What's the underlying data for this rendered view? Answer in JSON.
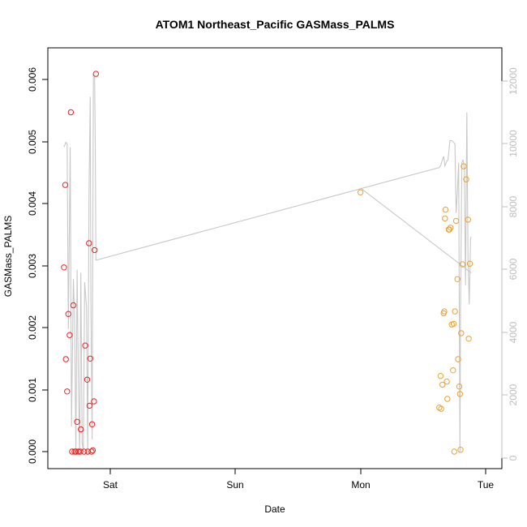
{
  "chart_data": {
    "type": "scatter",
    "title": "ATOM1 Northeast_Pacific GASMass_PALMS",
    "xlabel": "Date",
    "ylabel": "GASMass_PALMS",
    "x_tick_labels": [
      "Sat",
      "Sun",
      "Mon",
      "Tue"
    ],
    "y_ticks": [
      "0.000",
      "0.001",
      "0.002",
      "0.003",
      "0.004",
      "0.005",
      "0.006"
    ],
    "y_right_ticks": [
      "0",
      "2000",
      "4000",
      "6000",
      "8000",
      "10000",
      "12000"
    ],
    "xlim_days": [
      -0.42,
      3.05
    ],
    "ylim": [
      -0.00025,
      0.0063
    ],
    "y_right_lim": [
      -200,
      12800
    ],
    "grid": false,
    "legend": "none",
    "colors": {
      "series_1": "#ee2222",
      "series_2": "#eda030",
      "right_axis_line": "#c8c8c8",
      "right_axis_text": "#bdbdbd"
    },
    "series": [
      {
        "color_key": "series_1",
        "points": [
          {
            "x": -0.37,
            "y": 0.00297
          },
          {
            "x": -0.36,
            "y": 0.0043
          },
          {
            "x": -0.355,
            "y": 0.00149
          },
          {
            "x": -0.345,
            "y": 0.00097
          },
          {
            "x": -0.335,
            "y": 0.00222
          },
          {
            "x": -0.325,
            "y": 0.00188
          },
          {
            "x": -0.315,
            "y": 0.00547
          },
          {
            "x": -0.305,
            "y": 0.0
          },
          {
            "x": -0.295,
            "y": 0.00236
          },
          {
            "x": -0.285,
            "y": 0.0
          },
          {
            "x": -0.275,
            "y": 0.0
          },
          {
            "x": -0.265,
            "y": 0.00048
          },
          {
            "x": -0.255,
            "y": 0.0
          },
          {
            "x": -0.24,
            "y": 0.0
          },
          {
            "x": -0.235,
            "y": 0.00036
          },
          {
            "x": -0.21,
            "y": 0.0
          },
          {
            "x": -0.2,
            "y": 0.00171
          },
          {
            "x": -0.185,
            "y": 0.00116
          },
          {
            "x": -0.18,
            "y": 0.0
          },
          {
            "x": -0.17,
            "y": 0.00336
          },
          {
            "x": -0.165,
            "y": 0.00074
          },
          {
            "x": -0.16,
            "y": 0.0015
          },
          {
            "x": -0.15,
            "y": 0.0
          },
          {
            "x": -0.145,
            "y": 0.00044
          },
          {
            "x": -0.14,
            "y": 2e-05
          },
          {
            "x": -0.13,
            "y": 0.00081
          },
          {
            "x": -0.125,
            "y": 0.00325
          },
          {
            "x": -0.115,
            "y": 0.00609
          }
        ]
      },
      {
        "color_key": "series_2",
        "points": [
          {
            "x": 2.0,
            "y": 0.00418
          },
          {
            "x": 2.63,
            "y": 0.00071
          },
          {
            "x": 2.64,
            "y": 0.00122
          },
          {
            "x": 2.645,
            "y": 0.00069
          },
          {
            "x": 2.655,
            "y": 0.00108
          },
          {
            "x": 2.665,
            "y": 0.00223
          },
          {
            "x": 2.67,
            "y": 0.00226
          },
          {
            "x": 2.675,
            "y": 0.00376
          },
          {
            "x": 2.68,
            "y": 0.0039
          },
          {
            "x": 2.69,
            "y": 0.00113
          },
          {
            "x": 2.695,
            "y": 0.00085
          },
          {
            "x": 2.705,
            "y": 0.00358
          },
          {
            "x": 2.71,
            "y": 0.00358
          },
          {
            "x": 2.72,
            "y": 0.00361
          },
          {
            "x": 2.73,
            "y": 0.00205
          },
          {
            "x": 2.74,
            "y": 0.00131
          },
          {
            "x": 2.745,
            "y": 0.00206
          },
          {
            "x": 2.75,
            "y": 0.0
          },
          {
            "x": 2.755,
            "y": 0.00226
          },
          {
            "x": 2.765,
            "y": 0.00372
          },
          {
            "x": 2.775,
            "y": 0.00278
          },
          {
            "x": 2.78,
            "y": 0.00149
          },
          {
            "x": 2.79,
            "y": 0.00105
          },
          {
            "x": 2.795,
            "y": 0.00093
          },
          {
            "x": 2.8,
            "y": 3e-05
          },
          {
            "x": 2.805,
            "y": 0.00191
          },
          {
            "x": 2.815,
            "y": 0.00302
          },
          {
            "x": 2.825,
            "y": 0.0046
          },
          {
            "x": 2.845,
            "y": 0.00439
          },
          {
            "x": 2.86,
            "y": 0.00374
          },
          {
            "x": 2.865,
            "y": 0.00182
          },
          {
            "x": 2.875,
            "y": 0.00303
          }
        ]
      }
    ],
    "right_axis_line": [
      [
        -0.37,
        9900
      ],
      [
        -0.355,
        10050
      ],
      [
        -0.345,
        10000
      ],
      [
        -0.335,
        4100
      ],
      [
        -0.32,
        9900
      ],
      [
        -0.31,
        1000
      ],
      [
        -0.295,
        5700
      ],
      [
        -0.285,
        4500
      ],
      [
        -0.275,
        100
      ],
      [
        -0.265,
        6000
      ],
      [
        -0.255,
        2500
      ],
      [
        -0.245,
        100
      ],
      [
        -0.235,
        5900
      ],
      [
        -0.225,
        500
      ],
      [
        -0.215,
        200
      ],
      [
        -0.205,
        5600
      ],
      [
        -0.19,
        4800
      ],
      [
        -0.18,
        100
      ],
      [
        -0.17,
        8500
      ],
      [
        -0.16,
        11500
      ],
      [
        -0.155,
        5000
      ],
      [
        -0.145,
        600
      ],
      [
        -0.135,
        12200
      ],
      [
        -0.125,
        12150
      ],
      [
        -0.12,
        10000
      ],
      [
        -0.115,
        6300
      ],
      [
        2.63,
        9250
      ],
      [
        2.64,
        9300
      ],
      [
        2.655,
        9500
      ],
      [
        2.665,
        9600
      ],
      [
        2.675,
        9300
      ],
      [
        2.69,
        9450
      ],
      [
        2.7,
        9500
      ],
      [
        2.715,
        10100
      ],
      [
        2.73,
        10100
      ],
      [
        2.745,
        10050
      ],
      [
        2.755,
        10000
      ],
      [
        2.765,
        7800
      ],
      [
        2.775,
        8500
      ],
      [
        2.785,
        9400
      ],
      [
        2.795,
        200
      ],
      [
        2.8,
        4700
      ],
      [
        2.81,
        9400
      ],
      [
        2.82,
        9500
      ],
      [
        2.83,
        9200
      ],
      [
        2.84,
        5500
      ],
      [
        2.85,
        11000
      ],
      [
        2.86,
        6200
      ],
      [
        2.87,
        4900
      ],
      [
        2.88,
        7000
      ],
      [
        2.885,
        7050
      ]
    ],
    "right_axis_line_2": [
      [
        2.0,
        8600
      ],
      [
        2.885,
        5900
      ]
    ]
  }
}
